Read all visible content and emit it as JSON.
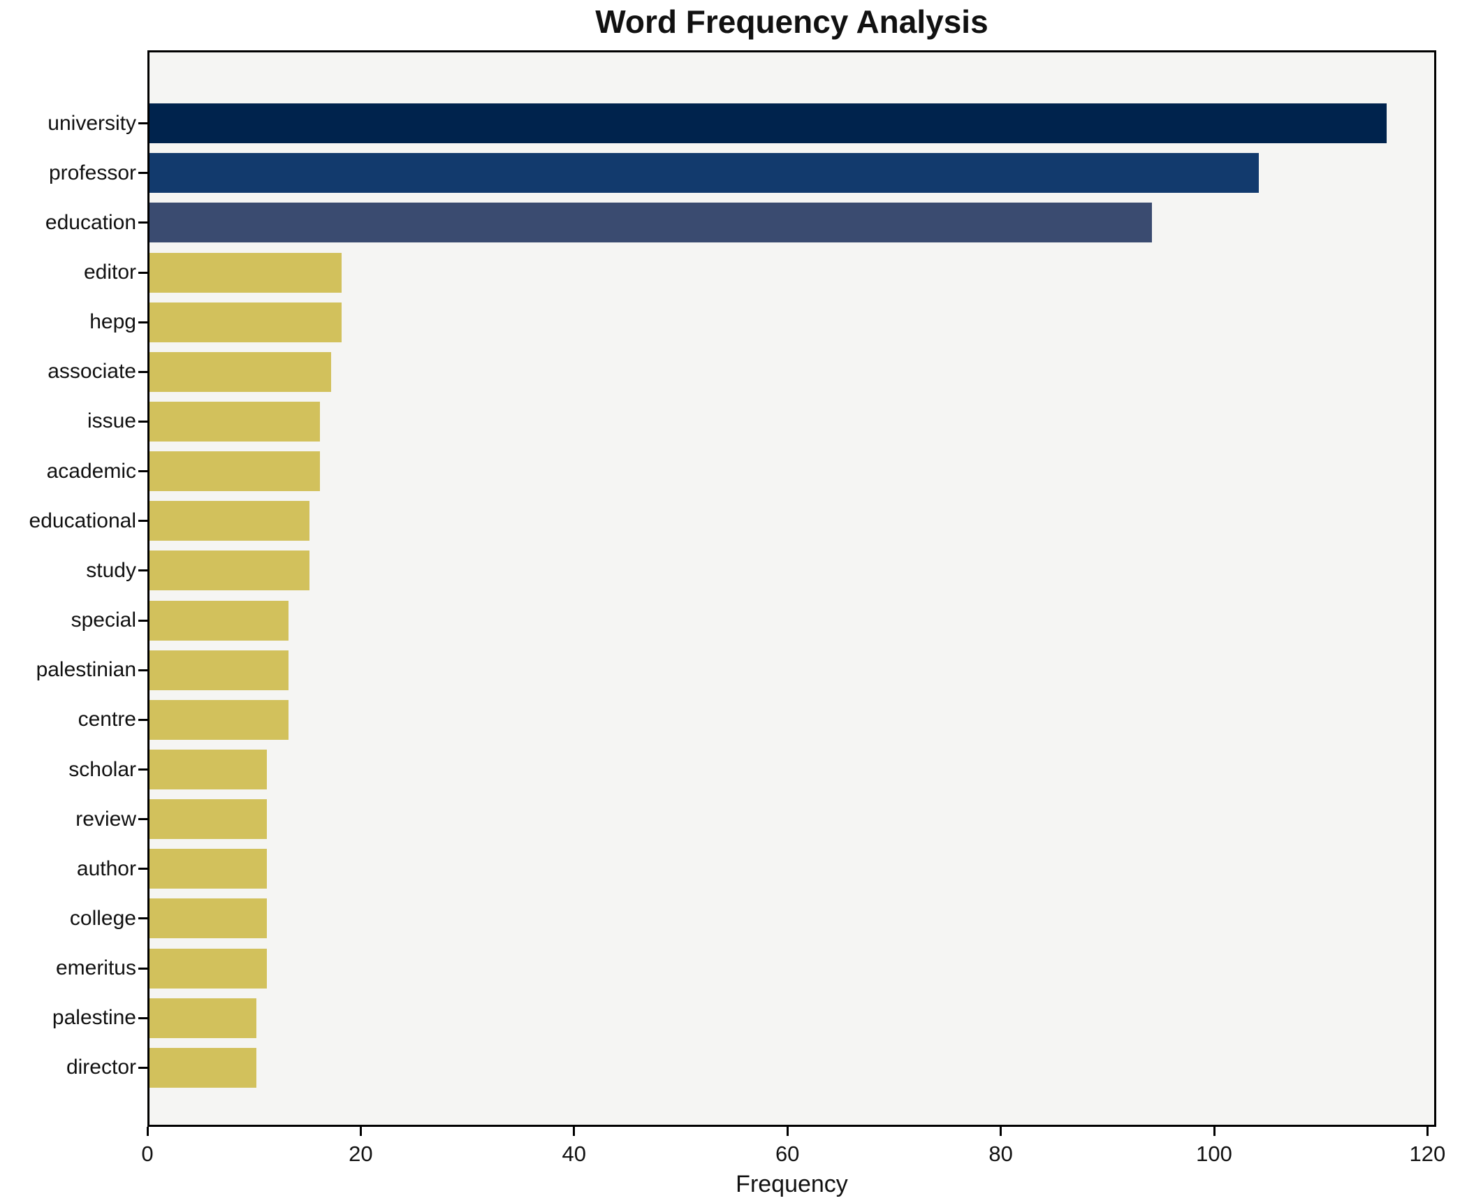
{
  "title": "Word Frequency Analysis",
  "chart_data": {
    "type": "bar",
    "orientation": "horizontal",
    "title": "Word Frequency Analysis",
    "xlabel": "Frequency",
    "ylabel": "",
    "xlim": [
      0,
      120.8
    ],
    "x_ticks": [
      0,
      20,
      40,
      60,
      80,
      100,
      120
    ],
    "grid": false,
    "legend": "none",
    "plot_background": "#f5f5f3",
    "figure_background": "#ffffff",
    "spine_color": "#000000",
    "categories": [
      "university",
      "professor",
      "education",
      "editor",
      "hepg",
      "associate",
      "issue",
      "academic",
      "educational",
      "study",
      "special",
      "palestinian",
      "centre",
      "scholar",
      "review",
      "author",
      "college",
      "emeritus",
      "palestine",
      "director"
    ],
    "values": [
      116,
      104,
      94,
      18,
      18,
      17,
      16,
      16,
      15,
      15,
      13,
      13,
      13,
      11,
      11,
      11,
      11,
      11,
      10,
      10
    ],
    "bar_colors": [
      "#00234d",
      "#123a6d",
      "#3a4b70",
      "#d2c15c",
      "#d2c15c",
      "#d2c15c",
      "#d2c15c",
      "#d2c15c",
      "#d2c15c",
      "#d2c15c",
      "#d2c15c",
      "#d2c15c",
      "#d2c15c",
      "#d2c15c",
      "#d2c15c",
      "#d2c15c",
      "#d2c15c",
      "#d2c15c",
      "#d2c15c",
      "#d2c15c"
    ]
  }
}
